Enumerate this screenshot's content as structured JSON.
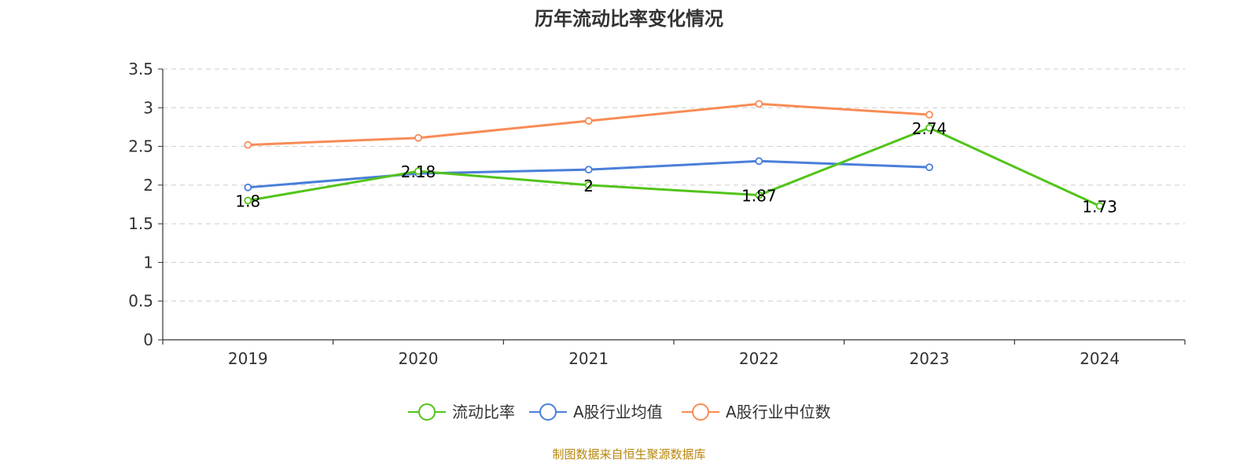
{
  "chart_data": {
    "type": "line",
    "title": "历年流动比率变化情况",
    "categories": [
      "2019",
      "2020",
      "2021",
      "2022",
      "2023",
      "2024"
    ],
    "ylim": [
      0,
      3.5
    ],
    "yticks": [
      "0",
      "0.5",
      "1",
      "1.5",
      "2",
      "2.5",
      "3",
      "3.5"
    ],
    "grid": true,
    "legend_position": "bottom",
    "series": [
      {
        "name": "流动比率",
        "color": "#52c41a",
        "values": [
          1.8,
          2.18,
          2.0,
          1.87,
          2.74,
          1.73
        ],
        "data_labels": [
          "1.8",
          "2.18",
          "2",
          "1.87",
          "2.74",
          "1.73"
        ]
      },
      {
        "name": "A股行业均值",
        "color": "#4a7fd8",
        "values": [
          1.97,
          2.15,
          2.2,
          2.31,
          2.23,
          null
        ]
      },
      {
        "name": "A股行业中位数",
        "color": "#f78c56",
        "values": [
          2.52,
          2.61,
          2.83,
          3.05,
          2.91,
          null
        ]
      }
    ],
    "source": "制图数据来自恒生聚源数据库"
  }
}
